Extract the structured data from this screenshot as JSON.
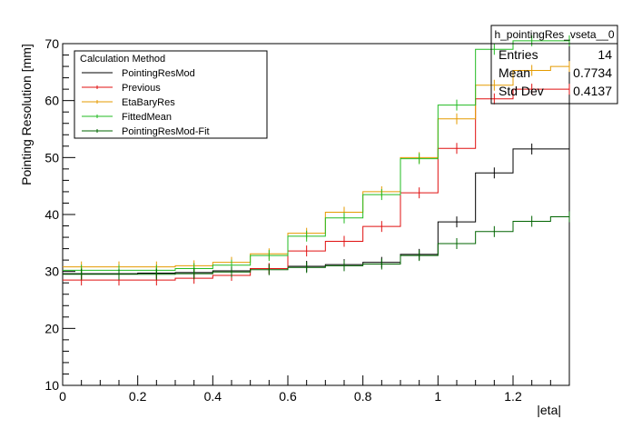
{
  "chart_data": {
    "type": "line",
    "title": "",
    "xlabel": "|eta|",
    "ylabel": "Pointing Resolution [mm]",
    "xlim": [
      0,
      1.35
    ],
    "ylim": [
      10,
      70
    ],
    "x_ticks": [
      "0",
      "0.2",
      "0.4",
      "0.6",
      "0.8",
      "1",
      "1.2"
    ],
    "y_ticks": [
      "10",
      "20",
      "30",
      "40",
      "50",
      "60",
      "70"
    ],
    "bin_edges": [
      0,
      0.1,
      0.2,
      0.3,
      0.4,
      0.5,
      0.6,
      0.7,
      0.8,
      0.9,
      1.0,
      1.1,
      1.2,
      1.3,
      1.4
    ],
    "legend": {
      "title": "Calculation Method",
      "placement": "top-left"
    },
    "series": [
      {
        "name": "PointingResMod",
        "color": "#000000",
        "values": [
          29.6,
          29.6,
          29.7,
          29.8,
          30.1,
          30.5,
          30.9,
          31.2,
          31.6,
          33.0,
          38.7,
          47.3,
          51.5,
          51.5
        ]
      },
      {
        "name": "Previous",
        "color": "#e01010",
        "values": [
          28.5,
          28.5,
          28.5,
          28.8,
          29.3,
          30.5,
          33.6,
          35.3,
          37.9,
          43.8,
          51.6,
          60.3,
          62.0,
          62.0
        ]
      },
      {
        "name": "EtaBaryRes",
        "color": "#e59b00",
        "values": [
          30.8,
          30.8,
          30.8,
          31.0,
          31.6,
          33.1,
          36.7,
          40.4,
          44.0,
          50.0,
          56.8,
          62.7,
          65.3,
          66.0
        ]
      },
      {
        "name": "FittedMean",
        "color": "#22bb22",
        "values": [
          30.2,
          30.2,
          30.2,
          30.5,
          31.1,
          32.8,
          36.2,
          39.4,
          43.5,
          49.8,
          59.2,
          69.0,
          70.5,
          70.5
        ]
      },
      {
        "name": "PointingResMod-Fit",
        "color": "#006400",
        "values": [
          29.5,
          29.5,
          29.5,
          29.6,
          29.9,
          30.3,
          30.7,
          31.0,
          31.3,
          32.8,
          34.9,
          37.0,
          38.8,
          39.6
        ]
      }
    ],
    "stats_box": {
      "name": "h_pointingRes_vseta__0",
      "rows": [
        {
          "label": "Entries",
          "value": "14"
        },
        {
          "label": "Mean",
          "value": "0.7734"
        },
        {
          "label": "Std Dev",
          "value": "0.4137"
        }
      ]
    },
    "grid": false
  }
}
